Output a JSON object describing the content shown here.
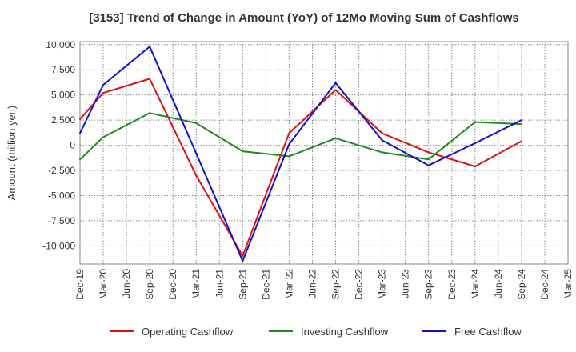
{
  "chart_data": {
    "type": "line",
    "title": "[3153]  Trend of Change in Amount (YoY) of 12Mo Moving Sum of Cashflows",
    "xlabel": "",
    "ylabel": "Amount (million yen)",
    "ylim": [
      -11800,
      10300
    ],
    "y_ticks": [
      10000,
      7500,
      5000,
      2500,
      0,
      -2500,
      -5000,
      -7500,
      -10000
    ],
    "y_tick_labels": [
      "10,000",
      "7,500",
      "5,000",
      "2,500",
      "0",
      "-2,500",
      "-5,000",
      "-7,500",
      "-10,000"
    ],
    "categories": [
      "Dec-19",
      "Mar-20",
      "Jun-20",
      "Sep-20",
      "Dec-20",
      "Mar-21",
      "Jun-21",
      "Sep-21",
      "Dec-21",
      "Mar-22",
      "Jun-22",
      "Sep-22",
      "Dec-22",
      "Mar-23",
      "Jun-23",
      "Sep-23",
      "Dec-23",
      "Mar-24",
      "Jun-24",
      "Sep-24",
      "Dec-24",
      "Mar-25"
    ],
    "grid": true,
    "legend_position": "bottom",
    "series": [
      {
        "name": "Operating Cashflow",
        "color": "#dd1111",
        "values": [
          2600,
          5200,
          null,
          6600,
          null,
          -3000,
          null,
          -11000,
          null,
          1200,
          null,
          5500,
          null,
          1200,
          null,
          -700,
          null,
          -2100,
          null,
          400,
          null,
          null
        ]
      },
      {
        "name": "Investing Cashflow",
        "color": "#228822",
        "values": [
          -1400,
          800,
          null,
          3200,
          null,
          2200,
          null,
          -600,
          null,
          -1100,
          null,
          700,
          null,
          -700,
          null,
          -1400,
          null,
          2300,
          null,
          2100,
          null,
          null
        ]
      },
      {
        "name": "Free Cashflow",
        "color": "#1111cc",
        "values": [
          1200,
          6000,
          null,
          9800,
          null,
          -800,
          null,
          -11500,
          null,
          100,
          null,
          6200,
          null,
          500,
          null,
          -2000,
          null,
          200,
          null,
          2500,
          null,
          null
        ]
      }
    ]
  }
}
